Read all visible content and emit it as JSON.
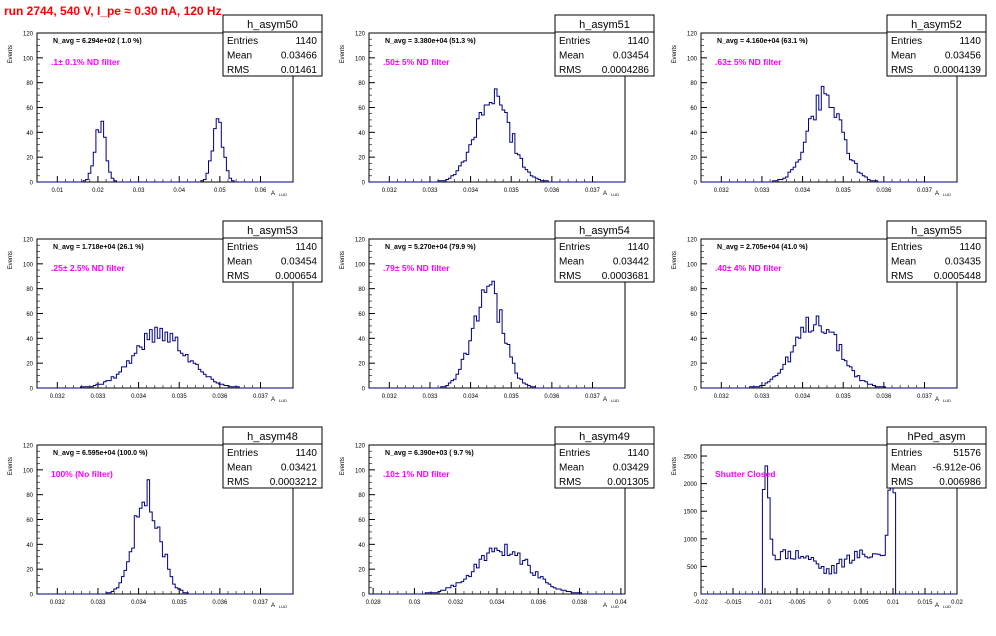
{
  "title": "run 2744,   540 V, I_pe ≈ 0.30 nA, 120 Hz",
  "colors": {
    "title": "#ff0000",
    "annotation": "#ff00ff",
    "hist": "#000080",
    "axis": "#000000"
  },
  "axis_label_y": "Events",
  "axis_label_x": "A",
  "axis_label_x_sub": "LUD",
  "stats_labels": {
    "entries": "Entries",
    "mean": "Mean",
    "rms": "RMS"
  },
  "chart_data": [
    {
      "type": "bar",
      "name": "h_asym50",
      "stats": {
        "entries": "1140",
        "mean": "0.03466",
        "rms": "0.01461"
      },
      "navg": "N_avg = 6.294e+02 ( 1.0 %)",
      "note": ".1± 0.1% ND filter",
      "xlim": [
        0.005,
        0.068
      ],
      "ylim": [
        0,
        120
      ],
      "xticks": [
        "0.01",
        "0.02",
        "0.03",
        "0.04",
        "0.05",
        "0.06"
      ],
      "yticks": [
        "0",
        "20",
        "40",
        "60",
        "80",
        "100",
        "120"
      ],
      "peaks": [
        {
          "mu": 0.0205,
          "sigma": 0.0013,
          "amp": 48
        },
        {
          "mu": 0.0495,
          "sigma": 0.0013,
          "amp": 48
        }
      ]
    },
    {
      "type": "bar",
      "name": "h_asym51",
      "stats": {
        "entries": "1140",
        "mean": "0.03454",
        "rms": "0.0004286"
      },
      "navg": "N_avg = 3.380e+04 (51.3 %)",
      "note": ".50± 5% ND filter",
      "xlim": [
        0.0315,
        0.0378
      ],
      "ylim": [
        0,
        120
      ],
      "xticks": [
        "0.032",
        "0.033",
        "0.034",
        "0.035",
        "0.036",
        "0.037"
      ],
      "yticks": [
        "0",
        "20",
        "40",
        "60",
        "80",
        "100",
        "120"
      ],
      "peaks": [
        {
          "mu": 0.03455,
          "sigma": 0.00043,
          "amp": 67
        }
      ]
    },
    {
      "type": "bar",
      "name": "h_asym52",
      "stats": {
        "entries": "1140",
        "mean": "0.03456",
        "rms": "0.0004139"
      },
      "navg": "N_avg = 4.160e+04 (63.1 %)",
      "note": ".63± 5% ND filter",
      "xlim": [
        0.0315,
        0.0378
      ],
      "ylim": [
        0,
        120
      ],
      "xticks": [
        "0.032",
        "0.033",
        "0.034",
        "0.035",
        "0.036",
        "0.037"
      ],
      "yticks": [
        "0",
        "20",
        "40",
        "60",
        "80",
        "100",
        "120"
      ],
      "peaks": [
        {
          "mu": 0.03456,
          "sigma": 0.00041,
          "amp": 70
        }
      ]
    },
    {
      "type": "bar",
      "name": "h_asym53",
      "stats": {
        "entries": "1140",
        "mean": "0.03454",
        "rms": "0.000654"
      },
      "navg": "N_avg = 1.718e+04 (26.1 %)",
      "note": ".25± 2.5% ND filter",
      "xlim": [
        0.0315,
        0.0378
      ],
      "ylim": [
        0,
        120
      ],
      "xticks": [
        "0.032",
        "0.033",
        "0.034",
        "0.035",
        "0.036",
        "0.037"
      ],
      "yticks": [
        "0",
        "20",
        "40",
        "60",
        "80",
        "100",
        "120"
      ],
      "peaks": [
        {
          "mu": 0.03454,
          "sigma": 0.00065,
          "amp": 44
        }
      ]
    },
    {
      "type": "bar",
      "name": "h_asym54",
      "stats": {
        "entries": "1140",
        "mean": "0.03442",
        "rms": "0.0003681"
      },
      "navg": "N_avg = 5.270e+04 (79.9 %)",
      "note": ".79± 5% ND filter",
      "xlim": [
        0.0315,
        0.0378
      ],
      "ylim": [
        0,
        120
      ],
      "xticks": [
        "0.032",
        "0.033",
        "0.034",
        "0.035",
        "0.036",
        "0.037"
      ],
      "yticks": [
        "0",
        "20",
        "40",
        "60",
        "80",
        "100",
        "120"
      ],
      "peaks": [
        {
          "mu": 0.03442,
          "sigma": 0.00037,
          "amp": 80
        }
      ]
    },
    {
      "type": "bar",
      "name": "h_asym55",
      "stats": {
        "entries": "1140",
        "mean": "0.03435",
        "rms": "0.0005448"
      },
      "navg": "N_avg = 2.705e+04 (41.0 %)",
      "note": ".40± 4% ND filter",
      "xlim": [
        0.0315,
        0.0378
      ],
      "ylim": [
        0,
        120
      ],
      "xticks": [
        "0.032",
        "0.033",
        "0.034",
        "0.035",
        "0.036",
        "0.037"
      ],
      "yticks": [
        "0",
        "20",
        "40",
        "60",
        "80",
        "100",
        "120"
      ],
      "peaks": [
        {
          "mu": 0.03435,
          "sigma": 0.00054,
          "amp": 54
        }
      ]
    },
    {
      "type": "bar",
      "name": "h_asym48",
      "stats": {
        "entries": "1140",
        "mean": "0.03421",
        "rms": "0.0003212"
      },
      "navg": "N_avg = 6.595e+04 (100.0 %)",
      "note": "100% (No filter)",
      "xlim": [
        0.0315,
        0.0378
      ],
      "ylim": [
        0,
        120
      ],
      "xticks": [
        "0.032",
        "0.033",
        "0.034",
        "0.035",
        "0.036",
        "0.037"
      ],
      "yticks": [
        "0",
        "20",
        "40",
        "60",
        "80",
        "100",
        "120"
      ],
      "peaks": [
        {
          "mu": 0.03421,
          "sigma": 0.00032,
          "amp": 80
        }
      ]
    },
    {
      "type": "bar",
      "name": "h_asym49",
      "stats": {
        "entries": "1140",
        "mean": "0.03429",
        "rms": "0.001305"
      },
      "navg": "N_avg = 6.390e+03 ( 9.7 %)",
      "note": ".10± 1% ND filter",
      "xlim": [
        0.0278,
        0.0402
      ],
      "ylim": [
        0,
        120
      ],
      "xticks": [
        "0.028",
        "0.03",
        "0.032",
        "0.034",
        "0.036",
        "0.038",
        "0.04"
      ],
      "yticks": [
        "0",
        "20",
        "40",
        "60",
        "80",
        "100",
        "120"
      ],
      "peaks": [
        {
          "mu": 0.03429,
          "sigma": 0.0013,
          "amp": 36
        }
      ]
    },
    {
      "type": "bar",
      "name": "hPed_asym",
      "stats": {
        "entries": "51576",
        "mean": "-6.912e-06",
        "rms": "0.006986"
      },
      "navg": "",
      "note": "Shutter Closed",
      "xlim": [
        -0.02,
        0.02
      ],
      "ylim": [
        0,
        2700
      ],
      "xticks": [
        "-0.02",
        "-0.015",
        "-0.01",
        "-0.005",
        "0",
        "0.005",
        "0.01",
        "0.015",
        "0.02"
      ],
      "yticks": [
        "0",
        "500",
        "1000",
        "1500",
        "2000",
        "2500"
      ],
      "pedestal": true
    }
  ]
}
